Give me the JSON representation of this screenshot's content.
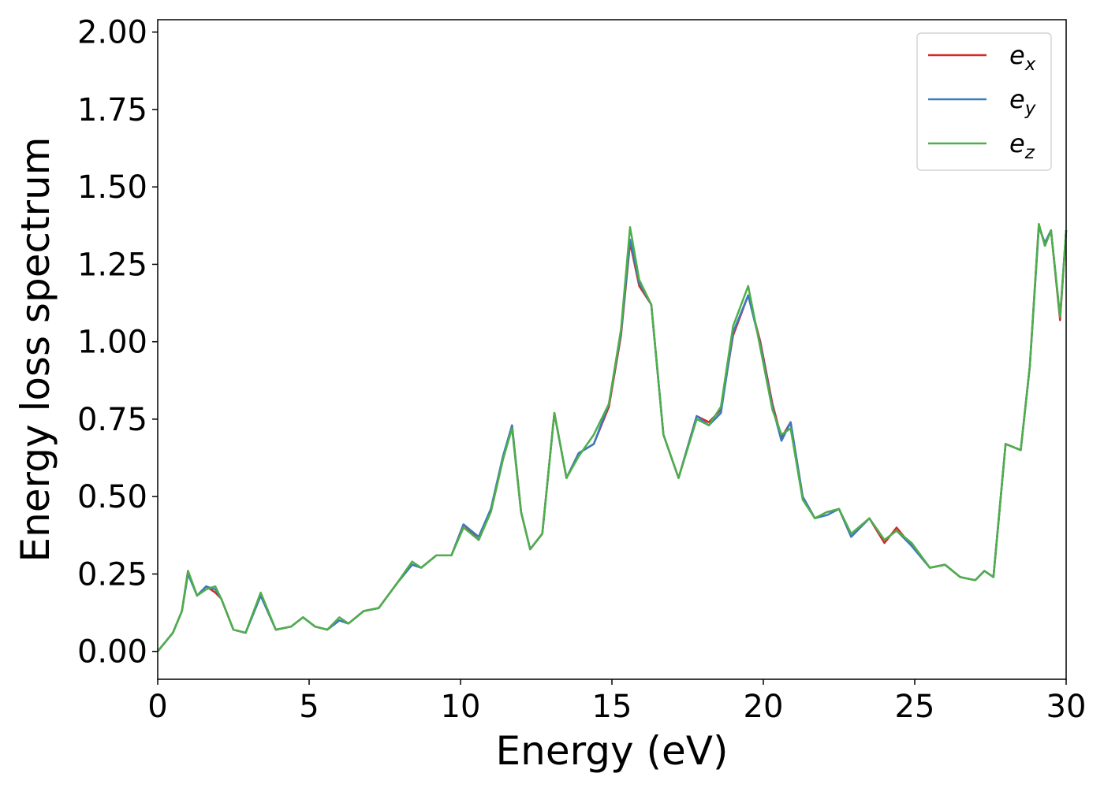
{
  "chart_data": {
    "type": "line",
    "title": "",
    "xlabel": "Energy (eV)",
    "ylabel": "Energy loss spectrum",
    "xlim": [
      0,
      30
    ],
    "ylim": [
      -0.09,
      2.04
    ],
    "xticks": [
      0,
      5,
      10,
      15,
      20,
      25,
      30
    ],
    "xtick_labels": [
      "0",
      "5",
      "10",
      "15",
      "20",
      "25",
      "30"
    ],
    "yticks": [
      0.0,
      0.25,
      0.5,
      0.75,
      1.0,
      1.25,
      1.5,
      1.75,
      2.0
    ],
    "ytick_labels": [
      "0.00",
      "0.25",
      "0.50",
      "0.75",
      "1.00",
      "1.25",
      "1.50",
      "1.75",
      "2.00"
    ],
    "grid": false,
    "legend_position": "top-right",
    "series": [
      {
        "name": "e_x",
        "label_base": "e",
        "label_sub": "x",
        "color": "#d62728",
        "x": [
          0,
          0.5,
          0.8,
          1.0,
          1.3,
          1.6,
          1.9,
          2.1,
          2.5,
          2.9,
          3.4,
          3.9,
          4.4,
          4.8,
          5.2,
          5.6,
          6.0,
          6.3,
          6.8,
          7.3,
          7.9,
          8.4,
          8.7,
          9.2,
          9.7,
          10.1,
          10.6,
          11.0,
          11.4,
          11.7,
          12.0,
          12.3,
          12.7,
          13.1,
          13.5,
          13.9,
          14.4,
          14.9,
          15.3,
          15.6,
          15.9,
          16.3,
          16.7,
          17.2,
          17.8,
          18.2,
          18.6,
          19.0,
          19.5,
          19.9,
          20.3,
          20.6,
          20.9,
          21.3,
          21.7,
          22.1,
          22.5,
          22.9,
          23.5,
          24.0,
          24.4,
          24.9,
          25.5,
          26.0,
          26.5,
          27.0,
          27.3,
          27.6,
          28.0,
          28.5,
          28.8,
          29.1,
          29.3,
          29.5,
          29.8,
          30.0
        ],
        "y": [
          0.0,
          0.06,
          0.13,
          0.26,
          0.18,
          0.21,
          0.19,
          0.17,
          0.07,
          0.06,
          0.18,
          0.07,
          0.08,
          0.11,
          0.08,
          0.07,
          0.1,
          0.09,
          0.13,
          0.14,
          0.22,
          0.28,
          0.27,
          0.31,
          0.31,
          0.41,
          0.36,
          0.45,
          0.62,
          0.73,
          0.45,
          0.33,
          0.38,
          0.77,
          0.56,
          0.64,
          0.67,
          0.79,
          1.02,
          1.32,
          1.18,
          1.12,
          0.7,
          0.56,
          0.76,
          0.74,
          0.78,
          1.02,
          1.15,
          1.0,
          0.8,
          0.69,
          0.74,
          0.5,
          0.43,
          0.45,
          0.46,
          0.37,
          0.43,
          0.35,
          0.4,
          0.34,
          0.27,
          0.28,
          0.24,
          0.23,
          0.26,
          0.24,
          0.67,
          0.65,
          0.92,
          1.38,
          1.31,
          1.36,
          1.07,
          1.36
        ]
      },
      {
        "name": "e_y",
        "label_base": "e",
        "label_sub": "y",
        "color": "#3a7bbf",
        "x": [
          0,
          0.5,
          0.8,
          1.0,
          1.3,
          1.6,
          1.9,
          2.1,
          2.5,
          2.9,
          3.4,
          3.9,
          4.4,
          4.8,
          5.2,
          5.6,
          6.0,
          6.3,
          6.8,
          7.3,
          7.9,
          8.4,
          8.7,
          9.2,
          9.7,
          10.1,
          10.6,
          11.0,
          11.4,
          11.7,
          12.0,
          12.3,
          12.7,
          13.1,
          13.5,
          13.9,
          14.4,
          14.9,
          15.3,
          15.6,
          15.9,
          16.3,
          16.7,
          17.2,
          17.8,
          18.2,
          18.6,
          19.0,
          19.5,
          19.9,
          20.3,
          20.6,
          20.9,
          21.3,
          21.7,
          22.1,
          22.5,
          22.9,
          23.5,
          24.0,
          24.4,
          24.9,
          25.5,
          26.0,
          26.5,
          27.0,
          27.3,
          27.6,
          28.0,
          28.5,
          28.8,
          29.1,
          29.3,
          29.5,
          29.8,
          30.0
        ],
        "y": [
          0.0,
          0.06,
          0.13,
          0.25,
          0.18,
          0.21,
          0.2,
          0.17,
          0.07,
          0.06,
          0.18,
          0.07,
          0.08,
          0.11,
          0.08,
          0.07,
          0.1,
          0.09,
          0.13,
          0.14,
          0.22,
          0.28,
          0.27,
          0.31,
          0.31,
          0.41,
          0.37,
          0.46,
          0.63,
          0.73,
          0.45,
          0.33,
          0.38,
          0.77,
          0.56,
          0.64,
          0.67,
          0.8,
          1.03,
          1.33,
          1.19,
          1.12,
          0.7,
          0.56,
          0.76,
          0.73,
          0.77,
          1.03,
          1.15,
          0.99,
          0.79,
          0.68,
          0.74,
          0.5,
          0.43,
          0.44,
          0.46,
          0.37,
          0.43,
          0.36,
          0.39,
          0.34,
          0.27,
          0.28,
          0.24,
          0.23,
          0.26,
          0.24,
          0.67,
          0.65,
          0.92,
          1.37,
          1.32,
          1.36,
          1.08,
          1.36
        ]
      },
      {
        "name": "e_z",
        "label_base": "e",
        "label_sub": "z",
        "color": "#4daf4a",
        "x": [
          0,
          0.5,
          0.8,
          1.0,
          1.3,
          1.6,
          1.9,
          2.1,
          2.5,
          2.9,
          3.4,
          3.9,
          4.4,
          4.8,
          5.2,
          5.6,
          6.0,
          6.3,
          6.8,
          7.3,
          7.9,
          8.4,
          8.7,
          9.2,
          9.7,
          10.1,
          10.6,
          11.0,
          11.4,
          11.7,
          12.0,
          12.3,
          12.7,
          13.1,
          13.5,
          13.9,
          14.4,
          14.9,
          15.3,
          15.6,
          15.9,
          16.3,
          16.7,
          17.2,
          17.8,
          18.2,
          18.6,
          19.0,
          19.5,
          19.9,
          20.3,
          20.6,
          20.9,
          21.3,
          21.7,
          22.1,
          22.5,
          22.9,
          23.5,
          24.0,
          24.4,
          24.9,
          25.5,
          26.0,
          26.5,
          27.0,
          27.3,
          27.6,
          28.0,
          28.5,
          28.8,
          29.1,
          29.3,
          29.5,
          29.8,
          30.0
        ],
        "y": [
          0.0,
          0.06,
          0.13,
          0.26,
          0.18,
          0.2,
          0.21,
          0.17,
          0.07,
          0.06,
          0.19,
          0.07,
          0.08,
          0.11,
          0.08,
          0.07,
          0.11,
          0.09,
          0.13,
          0.14,
          0.22,
          0.29,
          0.27,
          0.31,
          0.31,
          0.4,
          0.36,
          0.45,
          0.62,
          0.72,
          0.45,
          0.33,
          0.38,
          0.77,
          0.56,
          0.63,
          0.7,
          0.8,
          1.04,
          1.37,
          1.2,
          1.12,
          0.7,
          0.56,
          0.75,
          0.73,
          0.79,
          1.05,
          1.18,
          0.98,
          0.78,
          0.7,
          0.72,
          0.49,
          0.43,
          0.45,
          0.46,
          0.38,
          0.43,
          0.36,
          0.39,
          0.35,
          0.27,
          0.28,
          0.24,
          0.23,
          0.26,
          0.24,
          0.67,
          0.65,
          0.92,
          1.38,
          1.31,
          1.36,
          1.08,
          1.36
        ]
      }
    ]
  }
}
